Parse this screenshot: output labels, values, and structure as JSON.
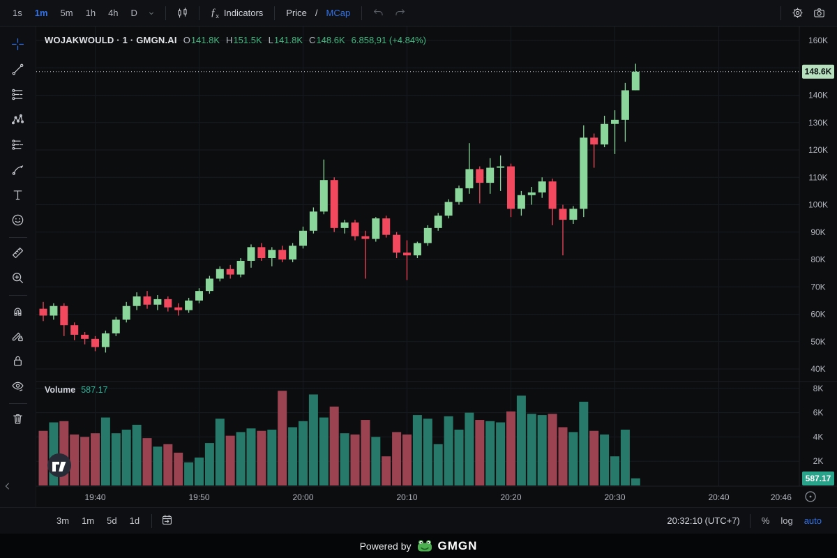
{
  "topbar": {
    "timeframes": [
      {
        "label": "1s",
        "active": false
      },
      {
        "label": "1m",
        "active": true
      },
      {
        "label": "5m",
        "active": false
      },
      {
        "label": "1h",
        "active": false
      },
      {
        "label": "4h",
        "active": false
      },
      {
        "label": "D",
        "active": false
      }
    ],
    "indicators_label": "Indicators",
    "price_label": "Price",
    "price_mcap_sep": "/",
    "mcap_label": "MCap"
  },
  "sidebar": {
    "tools": [
      {
        "icon": "crosshair",
        "name": "crosshair-tool",
        "active": true
      },
      {
        "icon": "trend-line",
        "name": "trend-line-tool"
      },
      {
        "icon": "fib-lines",
        "name": "fib-retracement-tool"
      },
      {
        "icon": "xabcd",
        "name": "xabcd-pattern-tool"
      },
      {
        "icon": "projection",
        "name": "forecast-tool"
      },
      {
        "icon": "brush",
        "name": "brush-tool"
      },
      {
        "icon": "text",
        "name": "text-tool"
      },
      {
        "icon": "emoji",
        "name": "emoji-tool"
      },
      {
        "divider": true
      },
      {
        "icon": "ruler",
        "name": "measure-tool"
      },
      {
        "icon": "zoom-in",
        "name": "zoom-in-tool"
      },
      {
        "divider": true
      },
      {
        "icon": "magnet",
        "name": "magnet-mode-button"
      },
      {
        "icon": "draw-lock",
        "name": "stay-in-drawing-mode-button"
      },
      {
        "icon": "lock",
        "name": "lock-all-drawings-button"
      },
      {
        "icon": "eye",
        "name": "hide-all-drawings-button"
      },
      {
        "divider": true
      },
      {
        "icon": "trash",
        "name": "remove-objects-button"
      }
    ]
  },
  "legend": {
    "symbol": "WOJAKWOULD · 1 · GMGN.AI",
    "o_label": "O",
    "h_label": "H",
    "l_label": "L",
    "c_label": "C",
    "open": "141.8K",
    "high": "151.5K",
    "low": "141.8K",
    "close": "148.6K",
    "change_abs": "6.858,91",
    "change_pct": "(+4.84%)"
  },
  "volume": {
    "label": "Volume",
    "value": "587.17"
  },
  "bottombar": {
    "ranges": [
      "3m",
      "1m",
      "5d",
      "1d"
    ],
    "clock": "20:32:10 (UTC+7)",
    "percent": "%",
    "log": "log",
    "auto": "auto"
  },
  "footer": {
    "powered_by": "Powered by",
    "brand": "GMGN"
  },
  "chart_data": {
    "type": "candlestick+volume",
    "symbol": "WOJAKWOULD",
    "exchange": "GMGN.AI",
    "interval_minutes": 1,
    "value_unit": "K (market cap)",
    "start_time": "19:35",
    "last_price_label": "148.6K",
    "last_volume_label": "587.17",
    "price_axis_ticks": [
      160,
      150,
      140,
      130,
      120,
      110,
      100,
      90,
      80,
      70,
      60,
      50,
      40
    ],
    "price_range": [
      40,
      160
    ],
    "volume_axis_ticks": [
      8,
      6,
      4,
      2
    ],
    "volume_range": [
      0,
      8.6
    ],
    "time_labels": [
      {
        "t": "19:40",
        "i": 5,
        "grid": true
      },
      {
        "t": "19:50",
        "i": 15,
        "grid": true
      },
      {
        "t": "20:00",
        "i": 25,
        "grid": true
      },
      {
        "t": "20:10",
        "i": 35,
        "grid": true
      },
      {
        "t": "20:20",
        "i": 45,
        "grid": true
      },
      {
        "t": "20:30",
        "i": 55,
        "grid": true
      },
      {
        "t": "20:40",
        "i": 65,
        "grid": true
      },
      {
        "t": "20:46",
        "i": 71,
        "grid": false
      }
    ],
    "candles_ohlc": [
      [
        62,
        64.5,
        57.5,
        59.5
      ],
      [
        59.5,
        64,
        58,
        63
      ],
      [
        63,
        64,
        52,
        56
      ],
      [
        56,
        57,
        50.5,
        52.5
      ],
      [
        52.5,
        53.5,
        49,
        51
      ],
      [
        51,
        52,
        46.5,
        48
      ],
      [
        48,
        54,
        46,
        53
      ],
      [
        53,
        59,
        52,
        58
      ],
      [
        58,
        64.5,
        57,
        63
      ],
      [
        63,
        68,
        61.5,
        66.5
      ],
      [
        66.5,
        68.5,
        62,
        63.5
      ],
      [
        63.5,
        67,
        61.5,
        65.5
      ],
      [
        65.5,
        66.5,
        61,
        62.5
      ],
      [
        62.5,
        64,
        59.5,
        61.5
      ],
      [
        61.5,
        66,
        60.5,
        65
      ],
      [
        65,
        69.5,
        64,
        68.5
      ],
      [
        68.5,
        74,
        67.5,
        73
      ],
      [
        73,
        77.5,
        72,
        76.5
      ],
      [
        76.5,
        78,
        73,
        74.5
      ],
      [
        74.5,
        80.5,
        73.5,
        79.5
      ],
      [
        79.5,
        85.5,
        77,
        84.5
      ],
      [
        84.5,
        86,
        79.5,
        80.5
      ],
      [
        80.5,
        84.5,
        77.5,
        83.5
      ],
      [
        83.5,
        85,
        79,
        80
      ],
      [
        80,
        86,
        79,
        85
      ],
      [
        85,
        92,
        84,
        90.5
      ],
      [
        90.5,
        99,
        89.5,
        97.5
      ],
      [
        97.5,
        116.5,
        96.5,
        109
      ],
      [
        109,
        110,
        90,
        91.5
      ],
      [
        91.5,
        94.5,
        89.5,
        93.5
      ],
      [
        93.5,
        94.5,
        87,
        88.5
      ],
      [
        88.5,
        90.5,
        73,
        87.5
      ],
      [
        87.5,
        95.5,
        86.5,
        95
      ],
      [
        95,
        96,
        88,
        89
      ],
      [
        89,
        90,
        80.5,
        82.5
      ],
      [
        82.5,
        87,
        72.5,
        81.5
      ],
      [
        81.5,
        86.5,
        80.5,
        86
      ],
      [
        86,
        92.5,
        85,
        91.5
      ],
      [
        91.5,
        97,
        90.5,
        96
      ],
      [
        96,
        102,
        95,
        101
      ],
      [
        101,
        107,
        100,
        106
      ],
      [
        106,
        122.5,
        104,
        113
      ],
      [
        113,
        114,
        100.5,
        108
      ],
      [
        108,
        117,
        104,
        113.5
      ],
      [
        113.5,
        118,
        105,
        114
      ],
      [
        114,
        115,
        95.5,
        98.5
      ],
      [
        98.5,
        105,
        96,
        103.5
      ],
      [
        103.5,
        106.5,
        100,
        104.5
      ],
      [
        104.5,
        110,
        102.5,
        108.5
      ],
      [
        108.5,
        109.5,
        92.5,
        98.5
      ],
      [
        98.5,
        100,
        81.5,
        94.5
      ],
      [
        94.5,
        99.5,
        93,
        98.5
      ],
      [
        98.5,
        129,
        95.5,
        124.5
      ],
      [
        124.5,
        126,
        113.5,
        122
      ],
      [
        122,
        132.5,
        121,
        129.5
      ],
      [
        129.5,
        134.5,
        118.5,
        131
      ],
      [
        131,
        144.5,
        123,
        141.8
      ],
      [
        141.8,
        151.5,
        141.8,
        148.6
      ]
    ],
    "volumes": [
      4.5,
      5.2,
      5.3,
      4.2,
      4.0,
      4.3,
      5.6,
      4.3,
      4.6,
      5.0,
      3.9,
      3.2,
      3.4,
      2.7,
      1.9,
      2.3,
      3.5,
      5.5,
      4.1,
      4.4,
      4.7,
      4.5,
      4.6,
      7.8,
      4.8,
      5.3,
      7.5,
      5.6,
      6.5,
      4.3,
      4.2,
      5.4,
      4.0,
      2.4,
      4.4,
      4.2,
      5.8,
      5.5,
      3.4,
      5.7,
      4.6,
      6.0,
      5.4,
      5.3,
      5.2,
      6.1,
      7.4,
      5.9,
      5.8,
      5.9,
      4.8,
      4.4,
      6.9,
      4.5,
      4.2,
      2.4,
      4.6,
      0.587
    ],
    "colors": {
      "up": "#8bd69b",
      "down": "#f2495e",
      "vol_up": "#27796a",
      "vol_down": "#9c4352",
      "grid": "#171b21",
      "axis_text": "#b2b5be",
      "last_price_badge_bg": "#b6e0be",
      "last_price_badge_text": "#0d1512",
      "last_volume_badge_bg": "#2aa38b",
      "last_volume_badge_text": "#ffffff",
      "dotted_line": "#c9cdd5",
      "accent_blue": "#3172ec"
    },
    "legend_position": "top-left",
    "grid": true
  }
}
